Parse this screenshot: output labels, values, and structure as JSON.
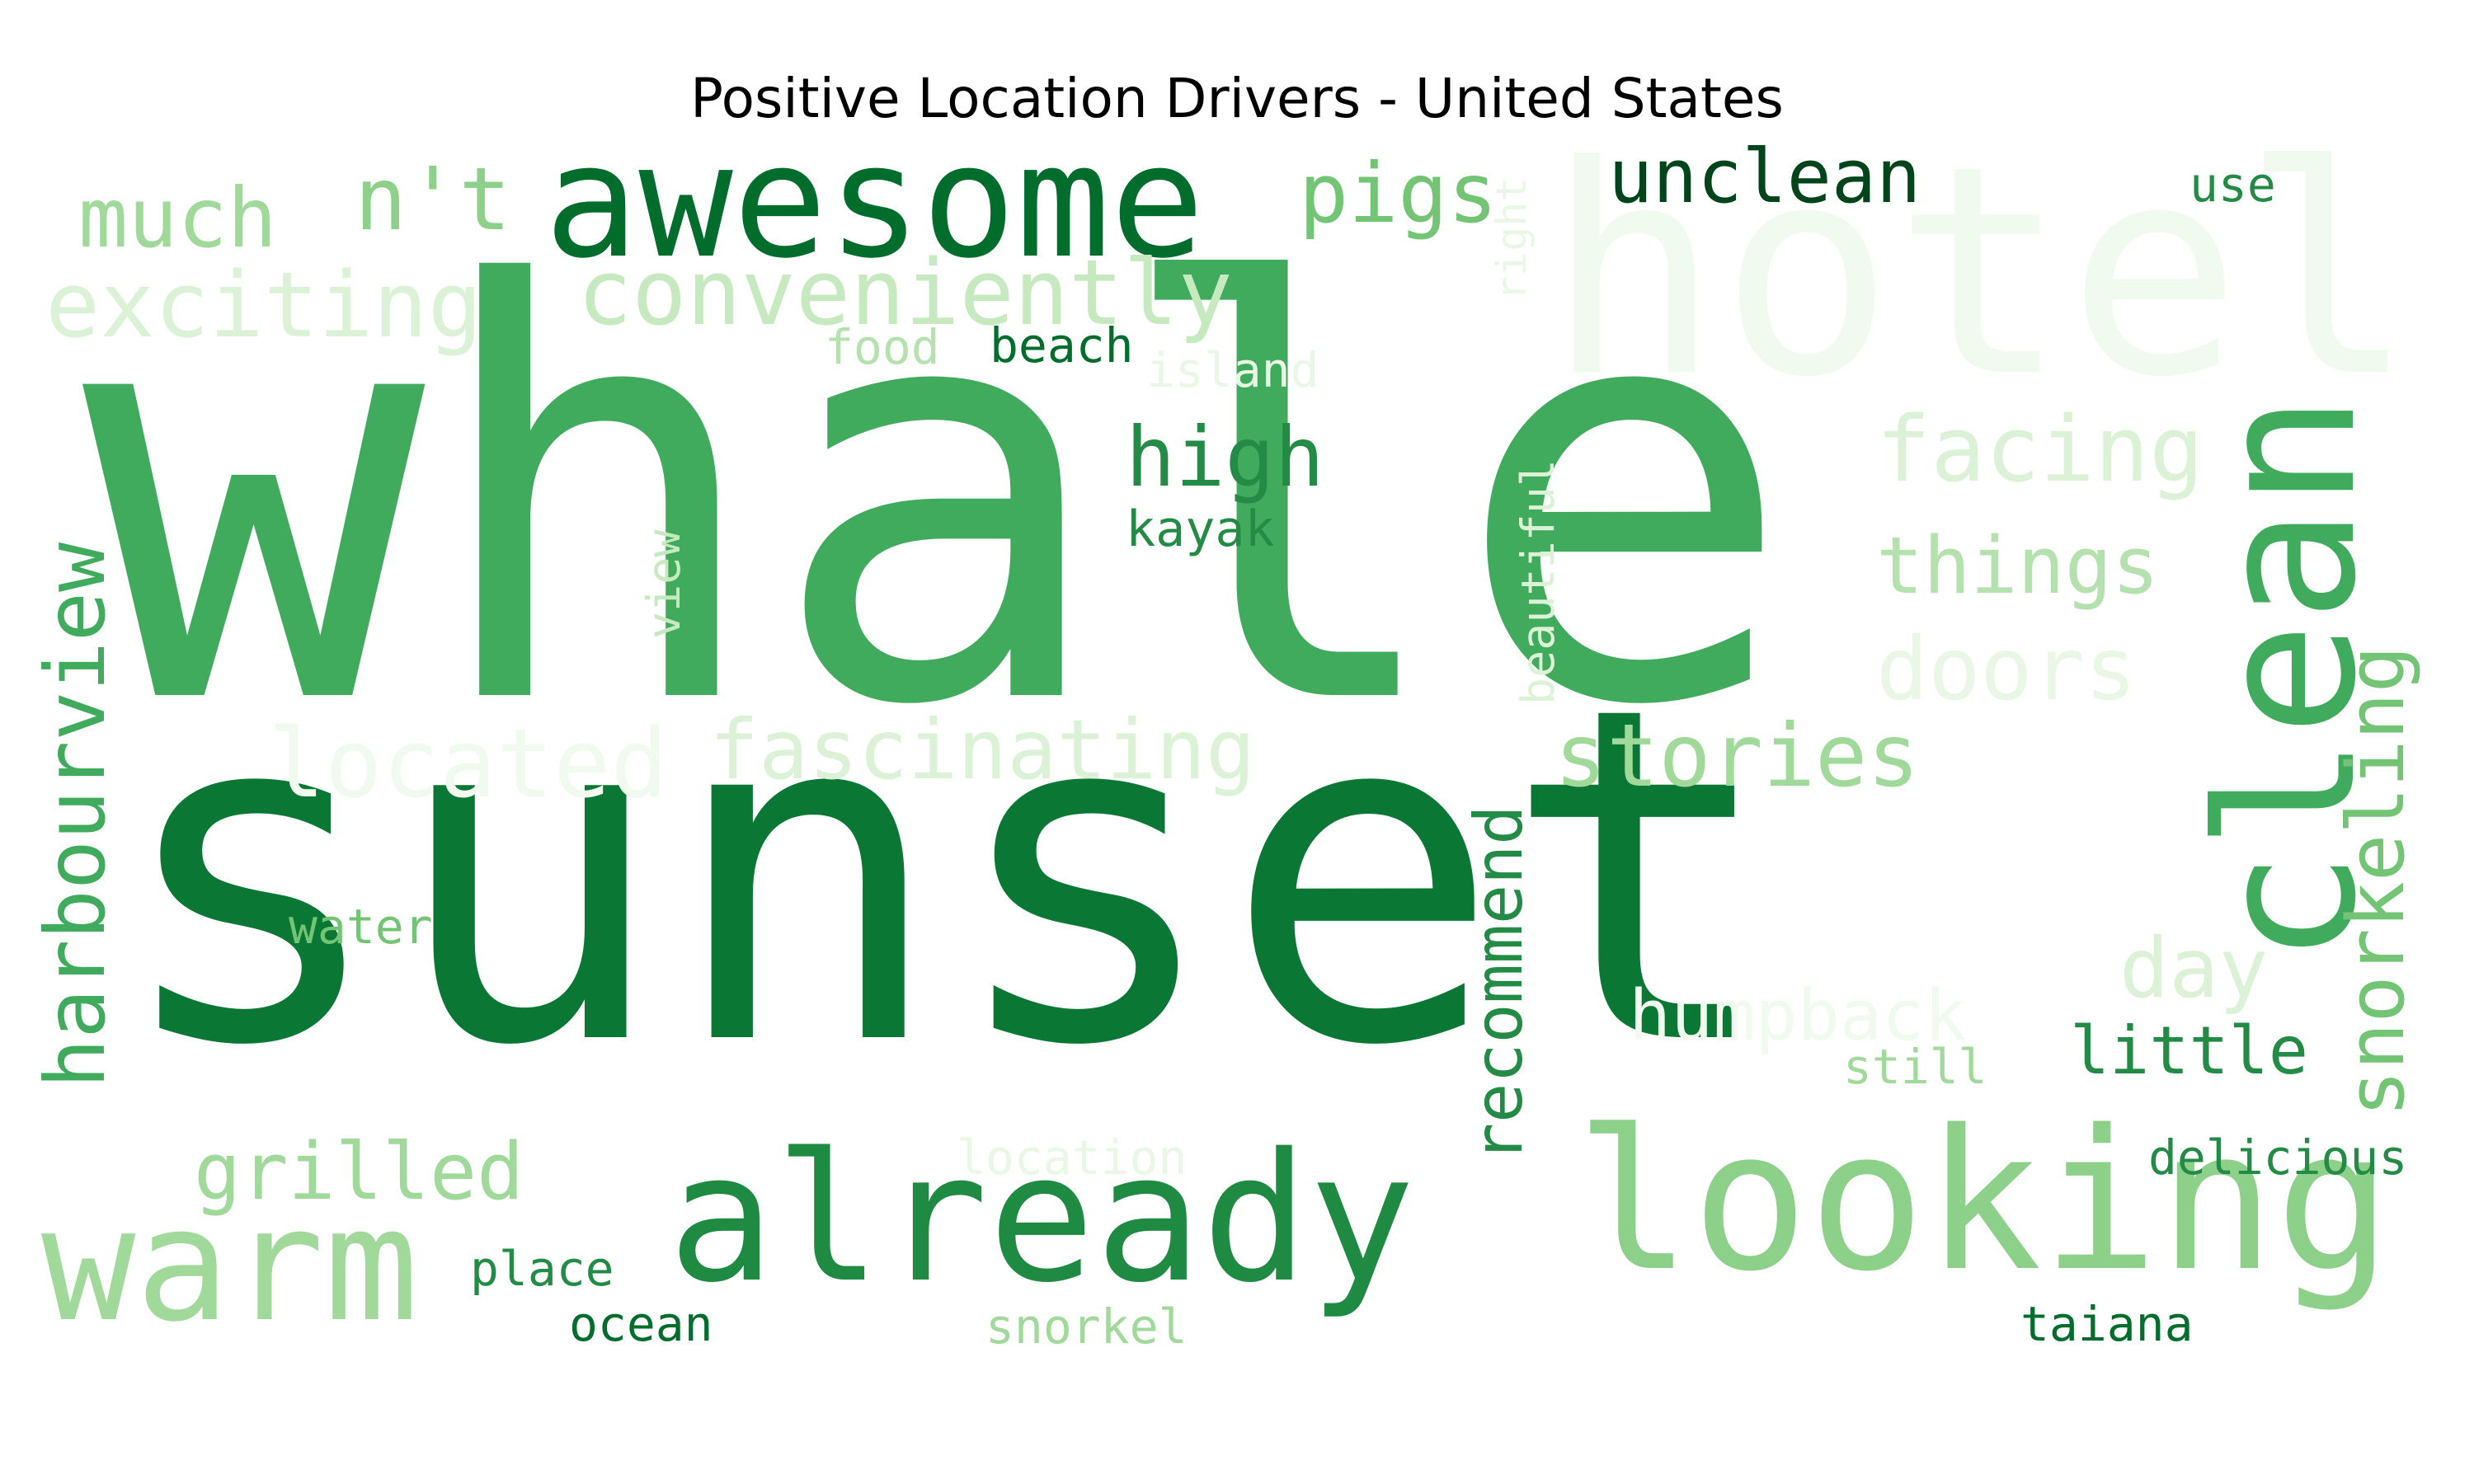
{
  "title": "Positive Location Drivers - United States",
  "palette": {
    "darkest": "#00441b",
    "dark": "#006d2c",
    "deep": "#0b7734",
    "strong": "#238b45",
    "mid": "#41ab5d",
    "light": "#74c476",
    "pale": "#a1d99b",
    "paler": "#c7e9c0",
    "faint": "#e5f5e0",
    "ghost": "#f1faee"
  },
  "words": [
    {
      "text": "whale",
      "color": "#41ab5d"
    },
    {
      "text": "sunset",
      "color": "#0b7734"
    },
    {
      "text": "hotel",
      "color": "#f1faee"
    },
    {
      "text": "awesome",
      "color": "#006d2c"
    },
    {
      "text": "clean",
      "color": "#41ab5d"
    },
    {
      "text": "looking",
      "color": "#8cd08a"
    },
    {
      "text": "already",
      "color": "#1f8a42"
    },
    {
      "text": "warm",
      "color": "#a1d99b"
    },
    {
      "text": "harbourview",
      "color": "#41ab5d"
    },
    {
      "text": "conveniently",
      "color": "#c7e9c0"
    },
    {
      "text": "exciting",
      "color": "#dcf2d6"
    },
    {
      "text": "unclean",
      "color": "#00441b"
    },
    {
      "text": "pigs",
      "color": "#74c476"
    },
    {
      "text": "n't",
      "color": "#8cd08a"
    },
    {
      "text": "much",
      "color": "#a1d99b"
    },
    {
      "text": "facing",
      "color": "#dcf2d6"
    },
    {
      "text": "things",
      "color": "#b5e1ae"
    },
    {
      "text": "doors",
      "color": "#eaf7e6"
    },
    {
      "text": "stories",
      "color": "#a1d99b"
    },
    {
      "text": "fascinating",
      "color": "#dcf2d6"
    },
    {
      "text": "located",
      "color": "#f1faee"
    },
    {
      "text": "snorkeling",
      "color": "#74c476"
    },
    {
      "text": "recommend",
      "color": "#238b45"
    },
    {
      "text": "high",
      "color": "#238b45"
    },
    {
      "text": "grilled",
      "color": "#a1d99b"
    },
    {
      "text": "day",
      "color": "#dcf2d6"
    },
    {
      "text": "humpback",
      "color": "#f1faee"
    },
    {
      "text": "little",
      "color": "#238b45"
    },
    {
      "text": "kayak",
      "color": "#238b45"
    },
    {
      "text": "beach",
      "color": "#006d2c"
    },
    {
      "text": "food",
      "color": "#b5e1ae"
    },
    {
      "text": "island",
      "color": "#eaf7e6"
    },
    {
      "text": "right",
      "color": "#eaf7e6"
    },
    {
      "text": "beautiful",
      "color": "#dcf2d6"
    },
    {
      "text": "view",
      "color": "#c7e9c0"
    },
    {
      "text": "use",
      "color": "#238b45"
    },
    {
      "text": "water",
      "color": "#74c476"
    },
    {
      "text": "place",
      "color": "#238b45"
    },
    {
      "text": "ocean",
      "color": "#006d2c"
    },
    {
      "text": "snorkel",
      "color": "#a1d99b"
    },
    {
      "text": "location",
      "color": "#eaf7e6"
    },
    {
      "text": "still",
      "color": "#a1d99b"
    },
    {
      "text": "delicious",
      "color": "#238b45"
    },
    {
      "text": "taiana",
      "color": "#006d2c"
    }
  ]
}
